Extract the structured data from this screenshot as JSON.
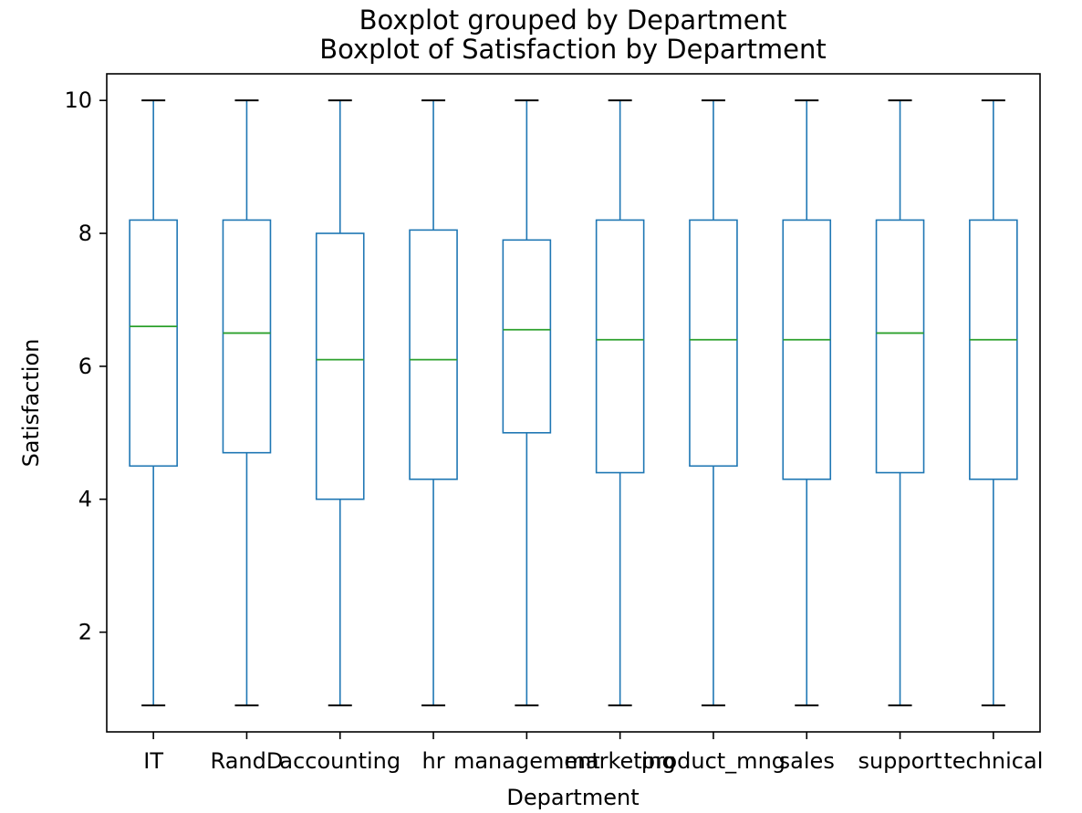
{
  "chart_data": {
    "type": "box",
    "title": "Boxplot grouped by Department",
    "subtitle": "Boxplot of Satisfaction by Department",
    "xlabel": "Department",
    "ylabel": "Satisfaction",
    "ylim": [
      0.5,
      10.4
    ],
    "yticks": [
      2,
      4,
      6,
      8,
      10
    ],
    "grid": false,
    "colors": {
      "box": "#1f77b4",
      "median": "#2ca02c",
      "cap": "#000000",
      "frame": "#000000"
    },
    "categories": [
      "IT",
      "RandD",
      "accounting",
      "hr",
      "management",
      "marketing",
      "product_mng",
      "sales",
      "support",
      "technical"
    ],
    "boxes": [
      {
        "min": 0.9,
        "q1": 4.5,
        "median": 6.6,
        "q3": 8.2,
        "max": 10
      },
      {
        "min": 0.9,
        "q1": 4.7,
        "median": 6.5,
        "q3": 8.2,
        "max": 10
      },
      {
        "min": 0.9,
        "q1": 4.0,
        "median": 6.1,
        "q3": 8.0,
        "max": 10
      },
      {
        "min": 0.9,
        "q1": 4.3,
        "median": 6.1,
        "q3": 8.05,
        "max": 10
      },
      {
        "min": 0.9,
        "q1": 5.0,
        "median": 6.55,
        "q3": 7.9,
        "max": 10
      },
      {
        "min": 0.9,
        "q1": 4.4,
        "median": 6.4,
        "q3": 8.2,
        "max": 10
      },
      {
        "min": 0.9,
        "q1": 4.5,
        "median": 6.4,
        "q3": 8.2,
        "max": 10
      },
      {
        "min": 0.9,
        "q1": 4.3,
        "median": 6.4,
        "q3": 8.2,
        "max": 10
      },
      {
        "min": 0.9,
        "q1": 4.4,
        "median": 6.5,
        "q3": 8.2,
        "max": 10
      },
      {
        "min": 0.9,
        "q1": 4.3,
        "median": 6.4,
        "q3": 8.2,
        "max": 10
      }
    ]
  }
}
